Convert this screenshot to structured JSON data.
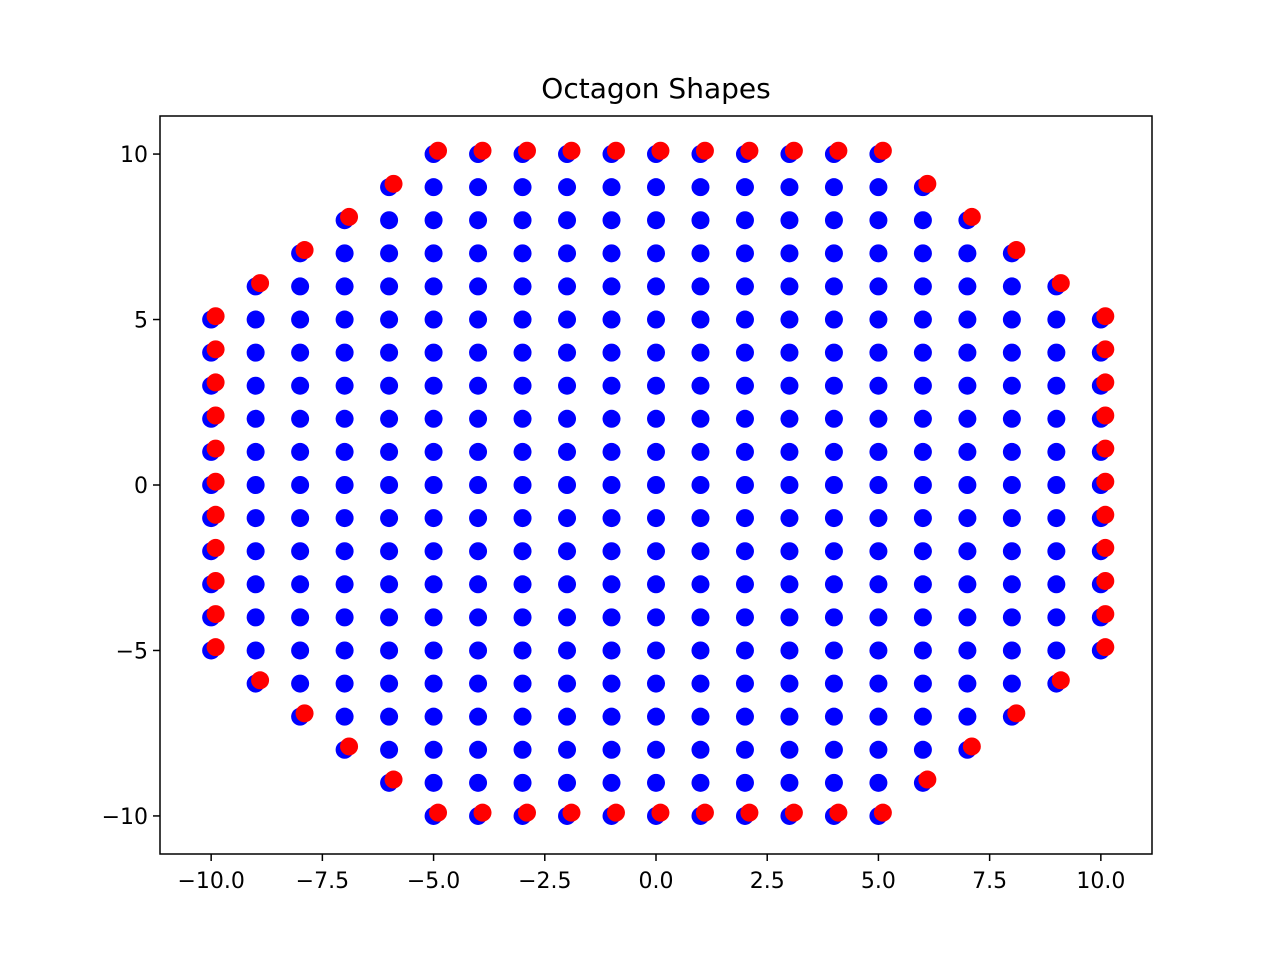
{
  "chart_data": {
    "type": "scatter",
    "title": "Octagon Shapes",
    "xlabel": "",
    "ylabel": "",
    "xlim": [
      -11.15,
      11.15
    ],
    "ylim": [
      -11.15,
      11.15
    ],
    "xticks": [
      -10.0,
      -7.5,
      -5.0,
      -2.5,
      0.0,
      2.5,
      5.0,
      7.5,
      10.0
    ],
    "xtick_labels": [
      "−10.0",
      "−7.5",
      "−5.0",
      "−2.5",
      "0.0",
      "2.5",
      "5.0",
      "7.5",
      "10.0"
    ],
    "yticks": [
      -10,
      -5,
      0,
      5,
      10
    ],
    "ytick_labels": [
      "−10",
      "−5",
      "0",
      "5",
      "10"
    ],
    "grid": false,
    "legend": "none",
    "series": [
      {
        "color": "#0000ff",
        "marker": "circle",
        "description": "filled octagonal integer lattice: all integer points with |x|<=10, |y|<=10, |x|+|y|<=15",
        "x_range": [
          -10,
          10
        ],
        "y_range": [
          -10,
          10
        ],
        "max_abs_sum": 15
      },
      {
        "color": "#ff0000",
        "marker": "circle",
        "description": "octagon boundary points, offset by (+0.1, +0.1)",
        "offset": [
          0.1,
          0.1
        ],
        "points": [
          [
            -5,
            10
          ],
          [
            -4,
            10
          ],
          [
            -3,
            10
          ],
          [
            -2,
            10
          ],
          [
            -1,
            10
          ],
          [
            0,
            10
          ],
          [
            1,
            10
          ],
          [
            2,
            10
          ],
          [
            3,
            10
          ],
          [
            4,
            10
          ],
          [
            5,
            10
          ],
          [
            6,
            9
          ],
          [
            7,
            8
          ],
          [
            8,
            7
          ],
          [
            9,
            6
          ],
          [
            10,
            5
          ],
          [
            10,
            4
          ],
          [
            10,
            3
          ],
          [
            10,
            2
          ],
          [
            10,
            1
          ],
          [
            10,
            0
          ],
          [
            10,
            -1
          ],
          [
            10,
            -2
          ],
          [
            10,
            -3
          ],
          [
            10,
            -4
          ],
          [
            10,
            -5
          ],
          [
            9,
            -6
          ],
          [
            8,
            -7
          ],
          [
            7,
            -8
          ],
          [
            6,
            -9
          ],
          [
            5,
            -10
          ],
          [
            4,
            -10
          ],
          [
            3,
            -10
          ],
          [
            2,
            -10
          ],
          [
            1,
            -10
          ],
          [
            0,
            -10
          ],
          [
            -1,
            -10
          ],
          [
            -2,
            -10
          ],
          [
            -3,
            -10
          ],
          [
            -4,
            -10
          ],
          [
            -5,
            -10
          ],
          [
            -6,
            -9
          ],
          [
            -7,
            -8
          ],
          [
            -8,
            -7
          ],
          [
            -9,
            -6
          ],
          [
            -10,
            -5
          ],
          [
            -10,
            -4
          ],
          [
            -10,
            -3
          ],
          [
            -10,
            -2
          ],
          [
            -10,
            -1
          ],
          [
            -10,
            0
          ],
          [
            -10,
            1
          ],
          [
            -10,
            2
          ],
          [
            -10,
            3
          ],
          [
            -10,
            4
          ],
          [
            -10,
            5
          ],
          [
            -9,
            6
          ],
          [
            -8,
            7
          ],
          [
            -7,
            8
          ],
          [
            -6,
            9
          ]
        ]
      }
    ]
  }
}
